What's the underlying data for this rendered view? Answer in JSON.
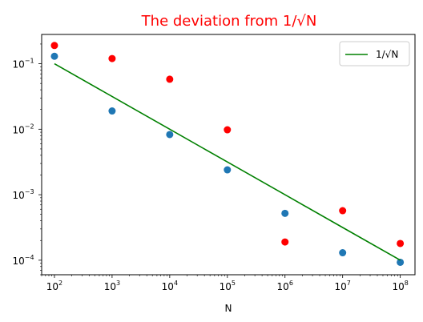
{
  "chart_data": {
    "type": "scatter",
    "title": "The deviation from 1/√N",
    "title_color": "#ff0000",
    "xlabel": "N",
    "ylabel": "",
    "xscale": "log",
    "yscale": "log",
    "xlim": [
      60,
      180000000
    ],
    "ylim": [
      6e-05,
      0.28
    ],
    "grid": false,
    "legend_position": "top-right",
    "x_ticks": [
      {
        "value": 100,
        "base": "10",
        "exp": "2"
      },
      {
        "value": 1000,
        "base": "10",
        "exp": "3"
      },
      {
        "value": 10000,
        "base": "10",
        "exp": "4"
      },
      {
        "value": 100000,
        "base": "10",
        "exp": "5"
      },
      {
        "value": 1000000,
        "base": "10",
        "exp": "6"
      },
      {
        "value": 10000000,
        "base": "10",
        "exp": "7"
      },
      {
        "value": 100000000,
        "base": "10",
        "exp": "8"
      }
    ],
    "y_ticks": [
      {
        "value": 0.1,
        "base": "10",
        "exp": "−1"
      },
      {
        "value": 0.01,
        "base": "10",
        "exp": "−2"
      },
      {
        "value": 0.001,
        "base": "10",
        "exp": "−3"
      },
      {
        "value": 0.0001,
        "base": "10",
        "exp": "−4"
      }
    ],
    "series": [
      {
        "kind": "scatter",
        "color": "#ff0000",
        "x": [
          100,
          1000,
          10000,
          100000,
          1000000,
          10000000,
          100000000
        ],
        "y": [
          0.19,
          0.12,
          0.058,
          0.0098,
          0.00019,
          0.00057,
          0.00018
        ]
      },
      {
        "kind": "scatter",
        "color": "#1f77b4",
        "x": [
          100,
          1000,
          10000,
          100000,
          1000000,
          10000000,
          100000000
        ],
        "y": [
          0.13,
          0.019,
          0.0083,
          0.0024,
          0.00052,
          0.00013,
          9.3e-05
        ]
      },
      {
        "kind": "line",
        "name": "1/√N",
        "color": "#008000",
        "x": [
          100,
          1000,
          10000,
          100000,
          1000000,
          10000000,
          100000000
        ],
        "y": [
          0.1,
          0.0316,
          0.01,
          0.00316,
          0.001,
          0.000316,
          0.0001
        ]
      }
    ],
    "legend": [
      {
        "label": "1/√N",
        "color": "#008000"
      }
    ]
  }
}
